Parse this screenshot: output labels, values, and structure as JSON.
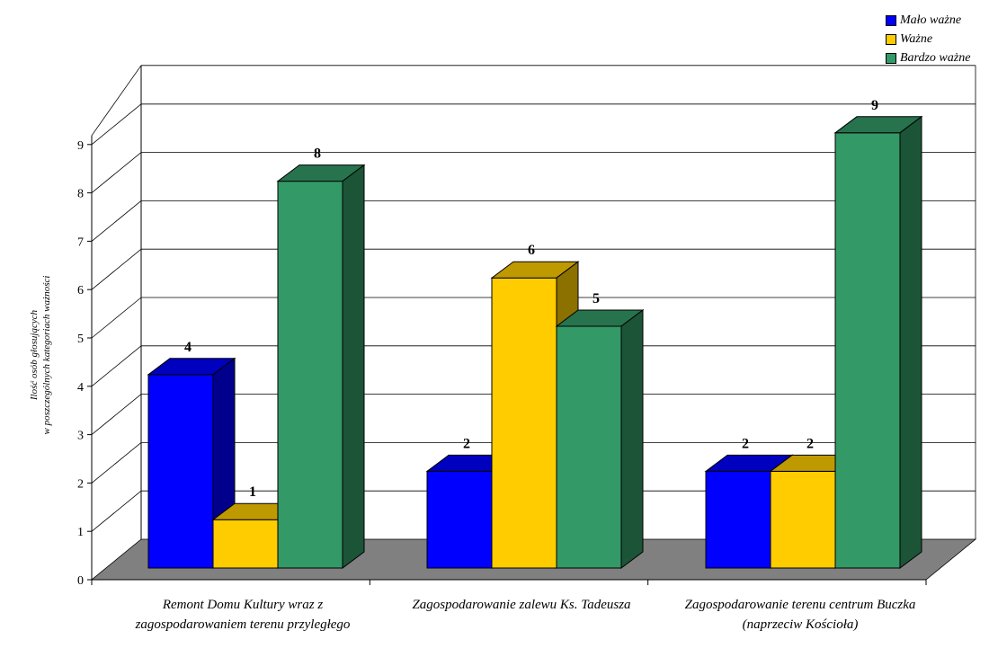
{
  "chart_data": {
    "type": "bar",
    "ylabel": "Ilość osób głosujących\nw poszczególnych kategoriach ważności",
    "categories": [
      "Remont Domu Kultury wraz z zagospodarowaniem terenu przyległego",
      "Zagospodarowanie zalewu Ks. Tadeusza",
      "Zagospodarowanie terenu centrum Buczka (naprzeciw Kościoła)"
    ],
    "series": [
      {
        "name": "Mało ważne",
        "values": [
          4,
          2,
          2
        ],
        "color": "#0000FF"
      },
      {
        "name": "Ważne",
        "values": [
          1,
          6,
          2
        ],
        "color": "#FFCC00"
      },
      {
        "name": "Bardzo ważne",
        "values": [
          8,
          5,
          9
        ],
        "color": "#339966"
      }
    ],
    "ylim": [
      0,
      9
    ],
    "yticks": [
      0,
      1,
      2,
      3,
      4,
      5,
      6,
      7,
      8,
      9
    ],
    "grid": true,
    "legend": "top-right",
    "data_labels_shown": [
      [
        true,
        true,
        true
      ],
      [
        true,
        true,
        true
      ],
      [
        true,
        true,
        true
      ]
    ],
    "floor_color": "#808080"
  }
}
